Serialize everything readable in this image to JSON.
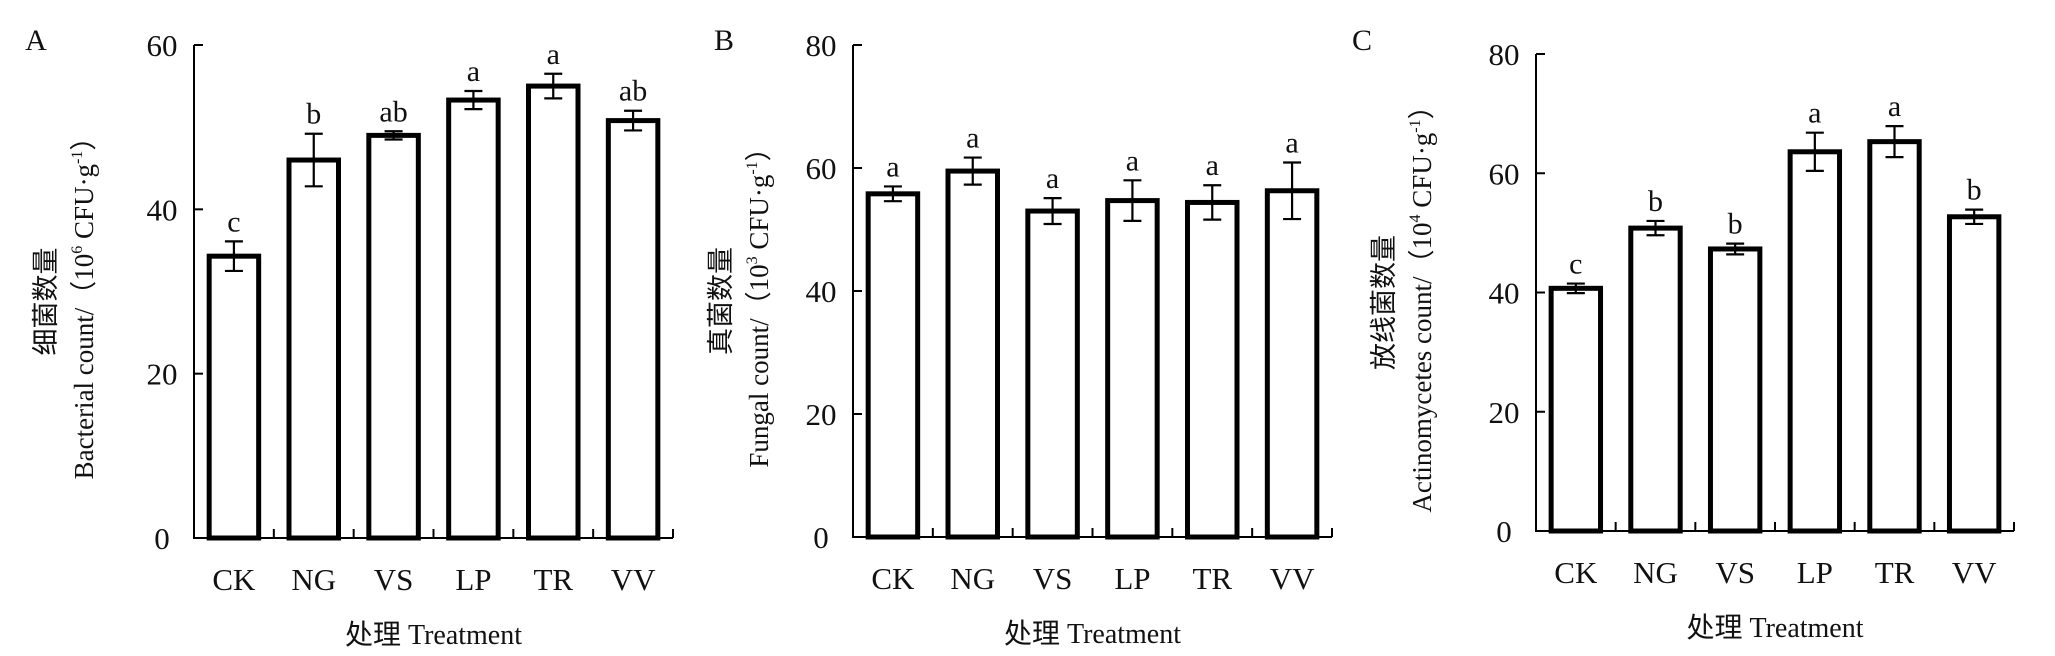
{
  "chart_data": [
    {
      "panel": "A",
      "type": "bar",
      "categories": [
        "CK",
        "NG",
        "VS",
        "LP",
        "TR",
        "VV"
      ],
      "values": [
        34.3,
        46.0,
        49.0,
        53.3,
        55.0,
        50.8
      ],
      "errors": [
        1.8,
        3.2,
        0.5,
        1.1,
        1.5,
        1.2
      ],
      "significance": [
        "c",
        "b",
        "ab",
        "a",
        "a",
        "ab"
      ],
      "ylabel_cn": "细菌数量",
      "ylabel_en": "Bacterial count/（10",
      "ylabel_exp": "6",
      "ylabel_unit": " CFU·g",
      "ylabel_unit_exp": "-1",
      "ylabel_close": "）",
      "xlabel": "处理 Treatment",
      "ylim": [
        0,
        60
      ],
      "yticks": [
        "0",
        "20",
        "40",
        "60"
      ],
      "grid": false
    },
    {
      "panel": "B",
      "type": "bar",
      "categories": [
        "CK",
        "NG",
        "VS",
        "LP",
        "TR",
        "VV"
      ],
      "values": [
        55.8,
        59.5,
        53.0,
        54.7,
        54.4,
        56.3
      ],
      "errors": [
        1.2,
        2.2,
        2.1,
        3.3,
        2.8,
        4.6
      ],
      "significance": [
        "a",
        "a",
        "a",
        "a",
        "a",
        "a"
      ],
      "ylabel_cn": "真菌数量",
      "ylabel_en": "Fungal count/（10",
      "ylabel_exp": "3",
      "ylabel_unit": " CFU·g",
      "ylabel_unit_exp": "-1",
      "ylabel_close": "）",
      "xlabel": "处理 Treatment",
      "ylim": [
        0,
        80
      ],
      "yticks": [
        "0",
        "20",
        "40",
        "60",
        "80"
      ],
      "grid": false
    },
    {
      "panel": "C",
      "type": "bar",
      "categories": [
        "CK",
        "NG",
        "VS",
        "LP",
        "TR",
        "VV"
      ],
      "values": [
        40.7,
        50.8,
        47.3,
        63.6,
        65.3,
        52.7
      ],
      "errors": [
        0.8,
        1.2,
        0.9,
        3.2,
        2.6,
        1.2
      ],
      "significance": [
        "c",
        "b",
        "b",
        "a",
        "a",
        "b"
      ],
      "ylabel_cn": "放线菌数量",
      "ylabel_en": "Actinomycetes count/（10",
      "ylabel_exp": "4",
      "ylabel_unit": " CFU·g",
      "ylabel_unit_exp": "-1",
      "ylabel_close": "）",
      "xlabel": "处理 Treatment",
      "ylim": [
        0,
        80
      ],
      "yticks": [
        "0",
        "20",
        "40",
        "60",
        "80"
      ],
      "grid": false
    }
  ],
  "style": {
    "bar_fill": "#ffffff",
    "bar_stroke": "#000000",
    "axis_color": "#000000",
    "background": "#ffffff"
  }
}
